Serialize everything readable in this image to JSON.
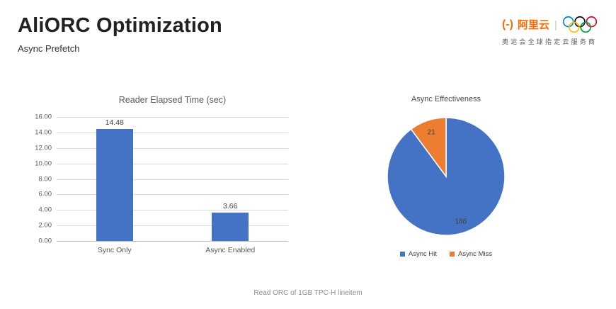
{
  "header": {
    "title": "AliORC Optimization",
    "subtitle": "Async Prefetch"
  },
  "logo": {
    "mark": "(-)",
    "brand": "阿里云",
    "separator": "|",
    "slogan": "奥运会全球指定云服务商",
    "brand_color": "#FF6A00",
    "olympic_ring_colors": [
      "#0085C7",
      "#000000",
      "#DF0024",
      "#F4C300",
      "#009F3D"
    ]
  },
  "chart_data": [
    {
      "type": "bar",
      "title": "Reader Elapsed Time (sec)",
      "categories": [
        "Sync Only",
        "Async Enabled"
      ],
      "values": [
        14.48,
        3.66
      ],
      "data_labels": [
        "14.48",
        "3.66"
      ],
      "ylim": [
        0,
        16
      ],
      "ytick_step": 2,
      "ytick_labels": [
        "0.00",
        "2.00",
        "4.00",
        "6.00",
        "8.00",
        "10.00",
        "12.00",
        "14.00",
        "16.00"
      ],
      "grid": true,
      "legend": "none",
      "bar_color": "#4472C4",
      "xlabel": "",
      "ylabel": ""
    },
    {
      "type": "pie",
      "title": "Async Effectiveness",
      "slices": [
        {
          "name": "Async Hit",
          "value": 186,
          "color": "#4472C4"
        },
        {
          "name": "Async Miss",
          "value": 21,
          "color": "#ED7D31"
        }
      ],
      "data_labels": [
        "186",
        "21"
      ],
      "start_angle_deg": 0,
      "direction": "clockwise",
      "legend_position": "bottom",
      "label_color": "#404040"
    }
  ],
  "footer": {
    "caption": "Read ORC of 1GB TPC-H lineitem"
  }
}
